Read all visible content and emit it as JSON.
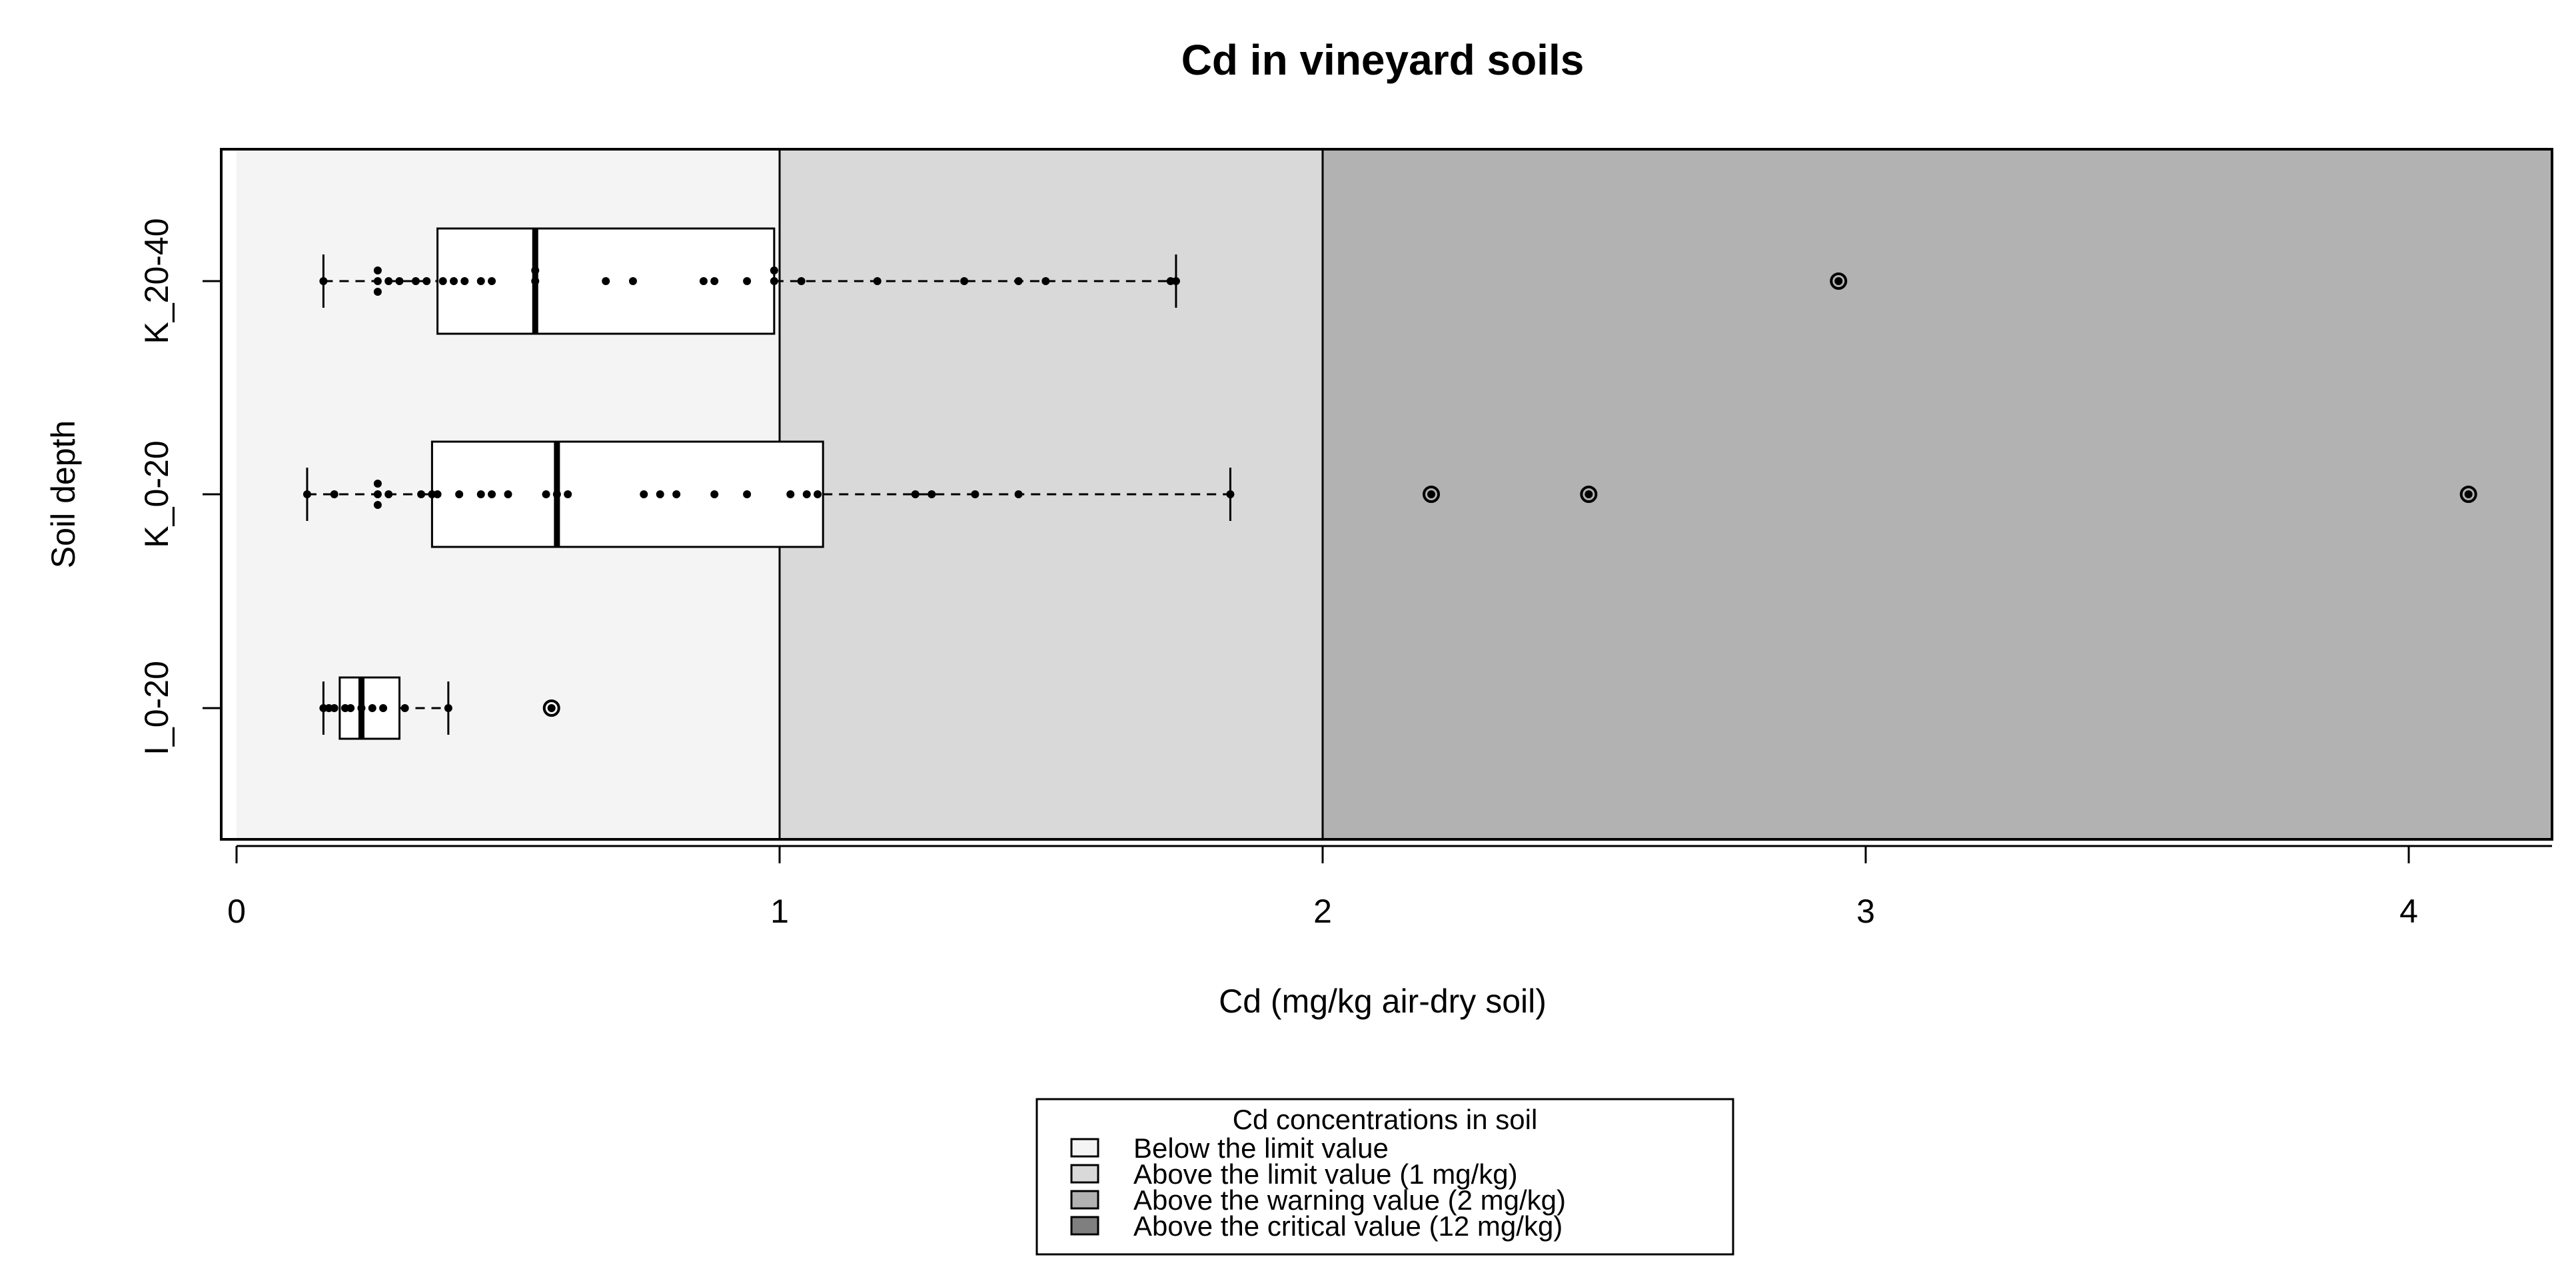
{
  "chart_data": {
    "type": "boxplot",
    "title": "Cd in vineyard soils",
    "xlabel": "Cd (mg/kg air-dry soil)",
    "ylabel": "Soil depth",
    "xlim": [
      0,
      4.28
    ],
    "xticks": [
      "0",
      "1",
      "2",
      "3",
      "4"
    ],
    "orientation": "horizontal",
    "thresholds": [
      1,
      2
    ],
    "zones": [
      {
        "from": 0,
        "to": 1,
        "color": "#f4f4f4"
      },
      {
        "from": 1,
        "to": 2,
        "color": "#d9d9d9"
      },
      {
        "from": 2,
        "to": 4.28,
        "color": "#b2b2b2"
      }
    ],
    "series": [
      {
        "name": "I_0-20",
        "whisker_low": 0.16,
        "q1": 0.19,
        "median": 0.23,
        "q3": 0.3,
        "whisker_high": 0.39,
        "outliers": [
          0.58
        ],
        "points": [
          0.16,
          0.17,
          0.18,
          0.2,
          0.21,
          0.23,
          0.25,
          0.27,
          0.31,
          0.39
        ]
      },
      {
        "name": "K_0-20",
        "whisker_low": 0.13,
        "q1": 0.36,
        "median": 0.59,
        "q3": 1.08,
        "whisker_high": 1.83,
        "outliers": [
          2.2,
          2.49,
          4.11
        ],
        "points": [
          0.13,
          0.18,
          0.26,
          0.26,
          0.26,
          0.28,
          0.34,
          0.36,
          0.37,
          0.41,
          0.45,
          0.47,
          0.5,
          0.57,
          0.59,
          0.61,
          0.75,
          0.78,
          0.81,
          0.88,
          0.94,
          1.02,
          1.05,
          1.07,
          1.25,
          1.28,
          1.36,
          1.44,
          1.83
        ]
      },
      {
        "name": "K_20-40",
        "whisker_low": 0.16,
        "q1": 0.37,
        "median": 0.55,
        "q3": 0.99,
        "whisker_high": 1.73,
        "outliers": [
          2.95
        ],
        "points": [
          0.16,
          0.26,
          0.26,
          0.26,
          0.28,
          0.3,
          0.33,
          0.35,
          0.38,
          0.4,
          0.42,
          0.45,
          0.47,
          0.55,
          0.55,
          0.68,
          0.73,
          0.86,
          0.88,
          0.94,
          0.99,
          0.99,
          1.04,
          1.18,
          1.34,
          1.44,
          1.49,
          1.72,
          1.73
        ]
      }
    ],
    "legend": {
      "title": "Cd concentrations in soil",
      "position": "bottom",
      "items": [
        {
          "label": "Below the limit value",
          "color": "#f4f4f4"
        },
        {
          "label": "Above the limit value (1 mg/kg)",
          "color": "#d9d9d9"
        },
        {
          "label": "Above the warning value (2 mg/kg)",
          "color": "#b2b2b2"
        },
        {
          "label": "Above the critical value (12 mg/kg)",
          "color": "#7f7f7f"
        }
      ]
    }
  }
}
